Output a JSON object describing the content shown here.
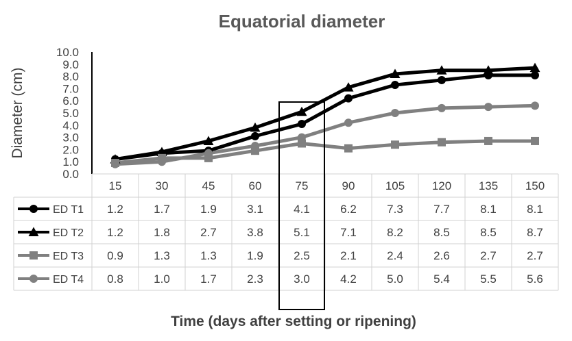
{
  "chart_data": {
    "type": "line",
    "title": "Equatorial diameter",
    "ylabel": "Diameter (cm)",
    "xlabel": "Time (days after setting or ripening)",
    "categories": [
      "15",
      "30",
      "45",
      "60",
      "75",
      "90",
      "105",
      "120",
      "135",
      "150"
    ],
    "ylim": [
      0,
      10
    ],
    "yticks": [
      "0.0",
      "1.0",
      "2.0",
      "3.0",
      "4.0",
      "5.0",
      "6.0",
      "7.0",
      "8.0",
      "9.0",
      "10.0"
    ],
    "series": [
      {
        "name": "ED T1",
        "values": [
          1.2,
          1.7,
          1.9,
          3.1,
          4.1,
          6.2,
          7.3,
          7.7,
          8.1,
          8.1
        ],
        "labels": [
          "1.2",
          "1.7",
          "1.9",
          "3.1",
          "4.1",
          "6.2",
          "7.3",
          "7.7",
          "8.1",
          "8.1"
        ],
        "color": "#000000",
        "marker": "circle"
      },
      {
        "name": "ED T2",
        "values": [
          1.2,
          1.8,
          2.7,
          3.8,
          5.1,
          7.1,
          8.2,
          8.5,
          8.5,
          8.7
        ],
        "labels": [
          "1.2",
          "1.8",
          "2.7",
          "3.8",
          "5.1",
          "7.1",
          "8.2",
          "8.5",
          "8.5",
          "8.7"
        ],
        "color": "#000000",
        "marker": "triangle"
      },
      {
        "name": "ED T3",
        "values": [
          0.9,
          1.3,
          1.3,
          1.9,
          2.5,
          2.1,
          2.4,
          2.6,
          2.7,
          2.7
        ],
        "labels": [
          "0.9",
          "1.3",
          "1.3",
          "1.9",
          "2.5",
          "2.1",
          "2.4",
          "2.6",
          "2.7",
          "2.7"
        ],
        "color": "#808080",
        "marker": "square"
      },
      {
        "name": "ED T4",
        "values": [
          0.8,
          1.0,
          1.7,
          2.3,
          3.0,
          4.2,
          5.0,
          5.4,
          5.5,
          5.6
        ],
        "labels": [
          "0.8",
          "1.0",
          "1.7",
          "2.3",
          "3.0",
          "4.2",
          "5.0",
          "5.4",
          "5.5",
          "5.6"
        ],
        "color": "#808080",
        "marker": "circle"
      }
    ],
    "highlight_category": "75",
    "grid": false,
    "legend": "data-table"
  }
}
